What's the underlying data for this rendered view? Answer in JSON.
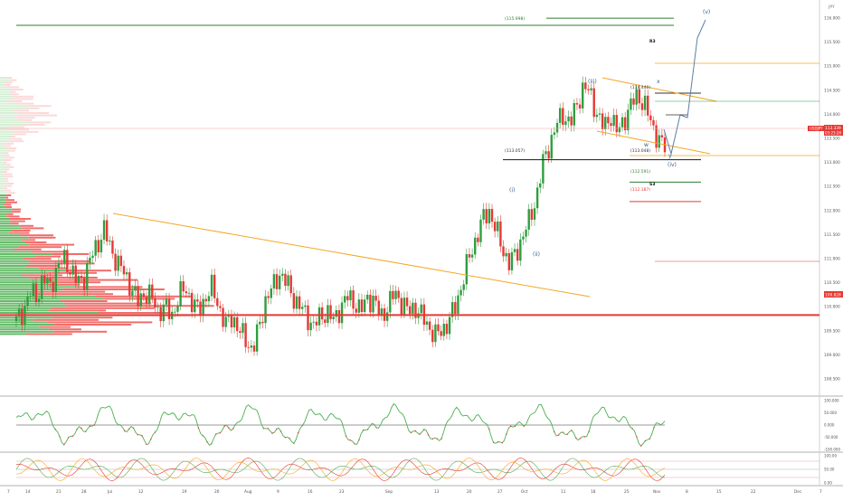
{
  "header": {
    "symbol_unit": "JPY"
  },
  "price_axis": {
    "labels": [
      "116.000",
      "115.500",
      "115.000",
      "114.500",
      "114.000",
      "113.500",
      "113.000",
      "112.500",
      "112.000",
      "111.500",
      "111.000",
      "110.500",
      "110.000",
      "109.500",
      "109.000",
      "108.500"
    ],
    "current_price": "113.339",
    "current_countdown": "03:23:28",
    "current_symbol": "USDJPY",
    "support_price": "109.828"
  },
  "time_axis": {
    "labels": [
      "7",
      "14",
      "21",
      "28",
      "Jul",
      "12",
      "19",
      "26",
      "Aug",
      "9",
      "16",
      "23",
      "Sep",
      "13",
      "20",
      "27",
      "Oct",
      "11",
      "18",
      "25",
      "Nov",
      "8",
      "15",
      "22",
      "Dec",
      "7"
    ]
  },
  "oscillator1_axis": {
    "labels": [
      "100.000",
      "50.000",
      "0.000",
      "-50.000",
      "-100.000"
    ]
  },
  "oscillator2_axis": {
    "labels": [
      "100.00",
      "50.00",
      "0.00"
    ]
  },
  "annotations": {
    "target_top": "(115.998)",
    "r3": "R3",
    "level_114_440": "(114.440)",
    "level_113_057": "(113.057)",
    "level_113_048": "(113.048)",
    "level_112_591": "(112.591)",
    "s3": "S3",
    "level_112_187": "(112.187)",
    "wave_i": "(i)",
    "wave_ii": "(ii)",
    "wave_iii": "(iii)",
    "wave_iv": "(iv)",
    "wave_v": "(v)",
    "wave_x": "x",
    "wave_w": "w",
    "wave_y": "y"
  },
  "colors": {
    "up": "#26a69a",
    "up_green": "#2e9e3f",
    "down": "#e53935",
    "support": "#e53935",
    "resistance_green": "#2e7d32",
    "fib_orange": "#f5a623",
    "wave_blue": "#5b7fa8",
    "osc_line": "#4caf50"
  },
  "chart_data": {
    "type": "candlestick",
    "symbol": "USDJPY",
    "ylim": [
      108.3,
      116.2
    ],
    "x_labels": [
      "7",
      "14",
      "21",
      "28",
      "Jul",
      "12",
      "19",
      "26",
      "Aug",
      "9",
      "16",
      "23",
      "Sep",
      "13",
      "20",
      "27",
      "Oct",
      "11",
      "18",
      "25",
      "Nov",
      "8",
      "15",
      "22",
      "Dec",
      "7"
    ],
    "close_path": [
      109.7,
      109.9,
      110.3,
      110.2,
      110.6,
      110.4,
      110.8,
      111.0,
      110.8,
      110.5,
      110.6,
      111.0,
      111.3,
      111.6,
      111.2,
      110.9,
      110.7,
      110.4,
      110.1,
      110.3,
      110.2,
      109.9,
      110.0,
      109.8,
      110.2,
      110.4,
      110.1,
      109.9,
      110.2,
      110.4,
      110.0,
      109.6,
      109.8,
      109.5,
      109.3,
      109.1,
      109.6,
      110.2,
      110.4,
      110.7,
      110.5,
      110.2,
      110.0,
      109.8,
      109.6,
      109.8,
      109.9,
      109.7,
      110.0,
      110.2,
      110.1,
      109.9,
      110.2,
      110.1,
      109.8,
      110.0,
      110.3,
      110.1,
      109.9,
      110.0,
      109.8,
      109.6,
      109.4,
      109.5,
      109.7,
      110.0,
      110.5,
      111.0,
      111.4,
      111.8,
      112.0,
      111.6,
      111.2,
      110.9,
      111.1,
      111.5,
      111.8,
      112.3,
      113.0,
      113.4,
      113.8,
      114.0,
      113.8,
      114.2,
      114.6,
      114.4,
      114.0,
      113.7,
      114.0,
      113.6,
      113.9,
      114.2,
      114.4,
      114.2,
      113.8,
      113.5,
      113.3
    ],
    "current_price": 113.339,
    "horizontal_levels": [
      {
        "price": 115.998,
        "label": "(115.998)",
        "color": "#2e7d32"
      },
      {
        "price": 115.85,
        "label": "",
        "color": "#2e7d32"
      },
      {
        "price": 114.44,
        "label": "(114.440)",
        "color": "#333333"
      },
      {
        "price": 113.057,
        "label": "(113.057)",
        "color": "#333333"
      },
      {
        "price": 112.591,
        "label": "(112.591)",
        "color": "#2e7d32"
      },
      {
        "price": 112.187,
        "label": "(112.187)",
        "color": "#e53935"
      },
      {
        "price": 109.828,
        "label": "",
        "color": "#e53935"
      }
    ],
    "oscillator1_ylim": [
      -100,
      100
    ],
    "oscillator2_ylim": [
      0,
      100
    ]
  }
}
